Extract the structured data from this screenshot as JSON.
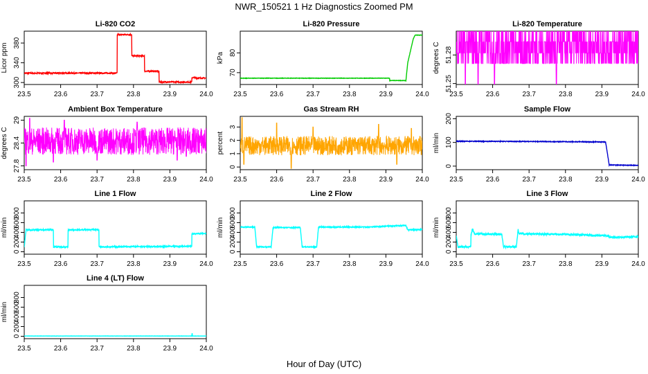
{
  "figure": {
    "title": "NWR_150521  1 Hz Diagnostics Zoomed PM",
    "xlabel": "Hour of Day (UTC)"
  },
  "chart_data": [
    {
      "type": "line",
      "title": "Li-820 CO2",
      "ylabel": "Licor ppm",
      "xlim": [
        23.5,
        24.0
      ],
      "ylim": [
        296,
        404
      ],
      "xticks": [
        "23.5",
        "23.6",
        "23.7",
        "23.8",
        "23.9",
        "24.0"
      ],
      "yticks": [
        300,
        340,
        380
      ],
      "series": [
        {
          "color": "#ff0000",
          "noise": 1.2,
          "x": [
            23.5,
            23.755,
            23.755,
            23.795,
            23.795,
            23.83,
            23.83,
            23.87,
            23.87,
            23.96,
            23.96,
            23.97,
            23.97,
            24.0
          ],
          "y": [
            319,
            319,
            397,
            397,
            354,
            354,
            323,
            323,
            301,
            301,
            310,
            310,
            309,
            309
          ]
        }
      ]
    },
    {
      "type": "line",
      "title": "Li-820 Pressure",
      "ylabel": "kPa",
      "xlim": [
        23.5,
        24.0
      ],
      "ylim": [
        64,
        91
      ],
      "xticks": [
        "23.5",
        "23.6",
        "23.7",
        "23.8",
        "23.9",
        "24.0"
      ],
      "yticks": [
        70,
        80
      ],
      "series": [
        {
          "color": "#00cc00",
          "noise": 0.1,
          "x": [
            23.5,
            23.91,
            23.91,
            23.955,
            23.96,
            23.975,
            23.98,
            24.0
          ],
          "y": [
            67.2,
            67.2,
            66.0,
            66.0,
            75,
            87,
            89,
            89
          ]
        }
      ]
    },
    {
      "type": "line",
      "title": "Li-820 Temperature",
      "ylabel": "degrees C",
      "xlim": [
        23.5,
        24.0
      ],
      "ylim": [
        51.249,
        51.305
      ],
      "xticks": [
        "23.5",
        "23.6",
        "23.7",
        "23.8",
        "23.9",
        "24.0"
      ],
      "yticks": [
        51.25,
        51.28
      ],
      "yticklabels": [
        "51.25",
        "51.28"
      ],
      "series": [
        {
          "color": "#ff00ff",
          "mode": "quantized",
          "levels": [
            51.271,
            51.282,
            51.294,
            51.305
          ],
          "dips": [
            23.525,
            23.56,
            23.605,
            23.775
          ],
          "dip_value": 51.249
        }
      ]
    },
    {
      "type": "line",
      "title": "Ambient Box Temperature",
      "ylabel": "degrees C",
      "xlim": [
        23.5,
        24.0
      ],
      "ylim": [
        27.7,
        29.1
      ],
      "xticks": [
        "23.5",
        "23.6",
        "23.7",
        "23.8",
        "23.9",
        "24.0"
      ],
      "yticks": [
        27.8,
        28.4,
        29.0
      ],
      "series": [
        {
          "color": "#ff00ff",
          "mode": "noise",
          "mean": 28.45,
          "spread": 0.45,
          "spikes": [
            [
              23.505,
              27.8
            ],
            [
              23.515,
              29.05
            ],
            [
              23.58,
              27.9
            ],
            [
              23.61,
              29.0
            ],
            [
              23.7,
              27.95
            ],
            [
              23.81,
              28.95
            ],
            [
              23.92,
              27.95
            ],
            [
              23.945,
              28.05
            ]
          ]
        }
      ]
    },
    {
      "type": "line",
      "title": "Gas Stream RH",
      "ylabel": "percent",
      "xlim": [
        23.5,
        24.0
      ],
      "ylim": [
        -0.2,
        3.8
      ],
      "xticks": [
        "23.5",
        "23.6",
        "23.7",
        "23.8",
        "23.9",
        "24.0"
      ],
      "yticks": [
        0,
        1,
        2,
        3
      ],
      "series": [
        {
          "color": "#ffa500",
          "mode": "noise",
          "mean": 1.6,
          "spread": 0.9,
          "spikes": [
            [
              23.505,
              3.7
            ],
            [
              23.51,
              0.2
            ],
            [
              23.6,
              3.3
            ],
            [
              23.64,
              -0.1
            ],
            [
              23.7,
              3.0
            ],
            [
              23.88,
              3.2
            ],
            [
              23.93,
              0.2
            ],
            [
              23.97,
              2.9
            ]
          ]
        }
      ]
    },
    {
      "type": "line",
      "title": "Sample Flow",
      "ylabel": "ml/min",
      "xlim": [
        23.5,
        24.0
      ],
      "ylim": [
        -15,
        210
      ],
      "xticks": [
        "23.5",
        "23.6",
        "23.7",
        "23.8",
        "23.9",
        "24.0"
      ],
      "yticks": [
        0,
        100,
        200
      ],
      "series": [
        {
          "color": "#0000cd",
          "noise": 1.5,
          "x": [
            23.5,
            23.7,
            23.9,
            23.91,
            23.915,
            23.92,
            24.0
          ],
          "y": [
            105,
            104,
            102,
            102,
            55,
            5,
            3
          ]
        }
      ]
    },
    {
      "type": "line",
      "title": "Line 1 Flow",
      "ylabel": "ml/min",
      "xlim": [
        23.5,
        24.0
      ],
      "ylim": [
        -50,
        1050
      ],
      "xticks": [
        "23.5",
        "23.6",
        "23.7",
        "23.8",
        "23.9",
        "24.0"
      ],
      "yticks": [
        0,
        200,
        400,
        600,
        800
      ],
      "series": [
        {
          "color": "#00ffff",
          "noise": 12,
          "x": [
            23.5,
            23.505,
            23.58,
            23.58,
            23.62,
            23.62,
            23.705,
            23.705,
            23.96,
            23.96,
            24.0
          ],
          "y": [
            100,
            450,
            455,
            100,
            100,
            450,
            455,
            100,
            115,
            370,
            380
          ]
        }
      ]
    },
    {
      "type": "line",
      "title": "Line 2 Flow",
      "ylabel": "ml/min",
      "xlim": [
        23.5,
        24.0
      ],
      "ylim": [
        -50,
        1050
      ],
      "xticks": [
        "23.5",
        "23.6",
        "23.7",
        "23.8",
        "23.9",
        "24.0"
      ],
      "yticks": [
        0,
        200,
        400,
        600,
        800
      ],
      "series": [
        {
          "color": "#00ffff",
          "noise": 10,
          "x": [
            23.5,
            23.54,
            23.545,
            23.585,
            23.59,
            23.665,
            23.67,
            23.71,
            23.715,
            23.85,
            23.955,
            23.96,
            24.0
          ],
          "y": [
            510,
            510,
            100,
            100,
            500,
            500,
            100,
            100,
            510,
            510,
            545,
            450,
            460
          ]
        }
      ]
    },
    {
      "type": "line",
      "title": "Line 3 Flow",
      "ylabel": "ml/min",
      "xlim": [
        23.5,
        24.0
      ],
      "ylim": [
        -50,
        1050
      ],
      "xticks": [
        "23.5",
        "23.6",
        "23.7",
        "23.8",
        "23.9",
        "24.0"
      ],
      "yticks": [
        0,
        200,
        400,
        600,
        800
      ],
      "series": [
        {
          "color": "#00ffff",
          "noise": 18,
          "x": [
            23.5,
            23.505,
            23.54,
            23.54,
            23.545,
            23.55,
            23.625,
            23.63,
            23.665,
            23.67,
            23.672,
            23.8,
            23.92,
            23.92,
            24.0
          ],
          "y": [
            320,
            100,
            100,
            320,
            480,
            370,
            360,
            100,
            100,
            460,
            370,
            360,
            330,
            300,
            310
          ]
        }
      ]
    },
    {
      "type": "line",
      "title": "Line 4 (LT) Flow",
      "ylabel": "ml/min",
      "xlim": [
        23.5,
        24.0
      ],
      "ylim": [
        -50,
        1050
      ],
      "xticks": [
        "23.5",
        "23.6",
        "23.7",
        "23.8",
        "23.9",
        "24.0"
      ],
      "yticks": [
        0,
        200,
        400,
        600,
        800
      ],
      "series": [
        {
          "color": "#00ffff",
          "noise": 2,
          "x": [
            23.5,
            23.96,
            23.961,
            23.962,
            23.965,
            24.0
          ],
          "y": [
            5,
            5,
            70,
            5,
            5,
            5
          ]
        }
      ]
    }
  ]
}
